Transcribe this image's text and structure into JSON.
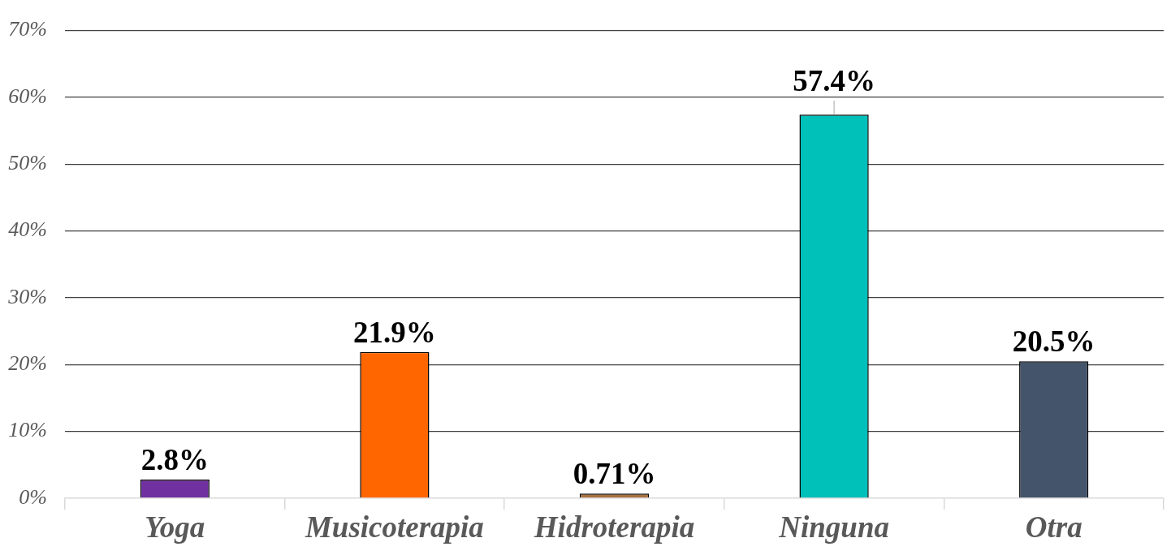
{
  "chart_data": {
    "type": "bar",
    "categories": [
      "Yoga",
      "Musicoterapia",
      "Hidroterapia",
      "Ninguna",
      "Otra"
    ],
    "values": [
      2.8,
      21.9,
      0.71,
      57.4,
      20.5
    ],
    "colors": [
      "#7030a0",
      "#ff6600",
      "#a9713e",
      "#00c0ba",
      "#44546a"
    ],
    "value_labels": [
      "2.8%",
      "21.9%",
      "0.71%",
      "57.4%",
      "20.5%"
    ],
    "ylim": [
      0,
      70
    ],
    "yticks": [
      {
        "value": 0,
        "label": "0%"
      },
      {
        "value": 10,
        "label": "10%"
      },
      {
        "value": 20,
        "label": "20%"
      },
      {
        "value": 30,
        "label": "30%"
      },
      {
        "value": 40,
        "label": "40%"
      },
      {
        "value": 50,
        "label": "50%"
      },
      {
        "value": 60,
        "label": "60%"
      },
      {
        "value": 70,
        "label": "70%"
      }
    ],
    "grid": "y",
    "legend": false
  }
}
